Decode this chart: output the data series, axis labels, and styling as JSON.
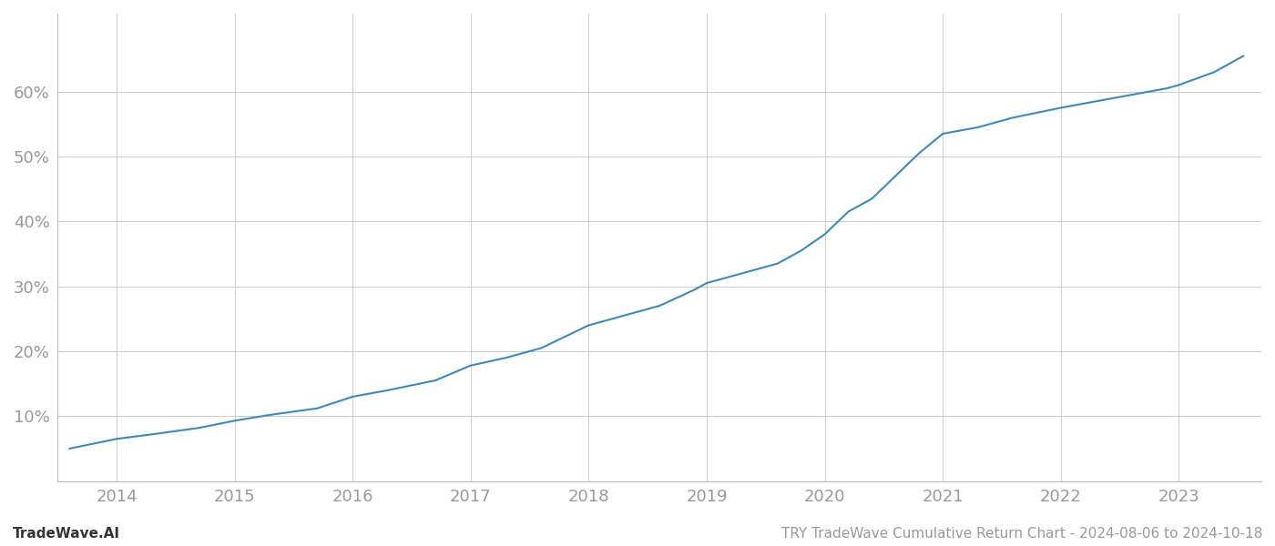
{
  "title": "TRY TradeWave Cumulative Return Chart - 2024-08-06 to 2024-10-18",
  "watermark": "TradeWave.AI",
  "line_color": "#3a8abf",
  "background_color": "#ffffff",
  "grid_color": "#cccccc",
  "x_years": [
    2014,
    2015,
    2016,
    2017,
    2018,
    2019,
    2020,
    2021,
    2022,
    2023
  ],
  "x_data": [
    2013.6,
    2014.0,
    2014.3,
    2014.7,
    2015.0,
    2015.3,
    2015.7,
    2016.0,
    2016.3,
    2016.7,
    2017.0,
    2017.3,
    2017.6,
    2018.0,
    2018.3,
    2018.6,
    2018.9,
    2019.0,
    2019.2,
    2019.4,
    2019.6,
    2019.8,
    2020.0,
    2020.2,
    2020.4,
    2020.6,
    2020.8,
    2021.0,
    2021.3,
    2021.6,
    2022.0,
    2022.3,
    2022.6,
    2022.9,
    2023.0,
    2023.3,
    2023.55
  ],
  "y_data": [
    5.0,
    6.5,
    7.2,
    8.2,
    9.3,
    10.2,
    11.2,
    13.0,
    14.0,
    15.5,
    17.8,
    19.0,
    20.5,
    24.0,
    25.5,
    27.0,
    29.5,
    30.5,
    31.5,
    32.5,
    33.5,
    35.5,
    38.0,
    41.5,
    43.5,
    47.0,
    50.5,
    53.5,
    54.5,
    56.0,
    57.5,
    58.5,
    59.5,
    60.5,
    61.0,
    63.0,
    65.5
  ],
  "ylim": [
    0,
    72
  ],
  "xlim": [
    2013.5,
    2023.7
  ],
  "yticks": [
    10,
    20,
    30,
    40,
    50,
    60
  ],
  "title_fontsize": 11,
  "watermark_fontsize": 11,
  "tick_label_color": "#999999",
  "tick_fontsize": 13,
  "line_width": 1.5,
  "spine_color": "#bbbbbb"
}
